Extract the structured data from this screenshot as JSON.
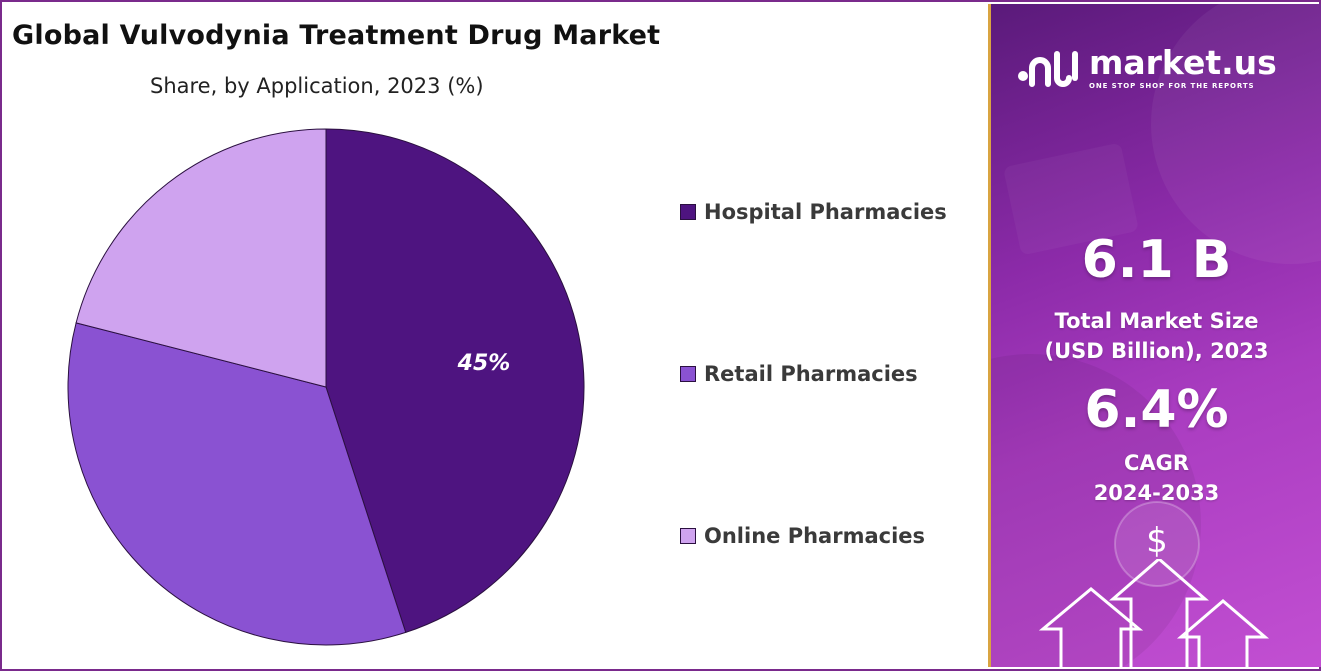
{
  "title": "Global Vulvodynia Treatment Drug Market",
  "subtitle": "Share, by Application, 2023 (%)",
  "chart_data": {
    "type": "pie",
    "title": "Global Vulvodynia Treatment Drug Market",
    "subtitle": "Share, by Application, 2023 (%)",
    "categories": [
      "Hospital Pharmacies",
      "Retail Pharmacies",
      "Online Pharmacies"
    ],
    "values": [
      45,
      34,
      21
    ],
    "data_labels": [
      "45%",
      "",
      ""
    ],
    "colors": [
      "#4e1480",
      "#8a52d2",
      "#cfa3ef"
    ],
    "start_angle_deg": 0,
    "direction": "clockwise",
    "legend_position": "right"
  },
  "legend": {
    "items": [
      {
        "label": "Hospital Pharmacies",
        "color": "#4e1480"
      },
      {
        "label": "Retail Pharmacies",
        "color": "#8a52d2"
      },
      {
        "label": "Online Pharmacies",
        "color": "#cfa3ef"
      }
    ]
  },
  "panel": {
    "brand_name": "market.us",
    "brand_tagline": "ONE STOP SHOP FOR THE REPORTS",
    "market_size_value": "6.1 B",
    "market_size_label_line1": "Total Market Size",
    "market_size_label_line2": "(USD Billion), 2023",
    "cagr_value": "6.4%",
    "cagr_label_line1": "CAGR",
    "cagr_label_line2": "2024-2033",
    "dollar_symbol": "$",
    "icons": [
      "market-us-logo-icon",
      "dollar-icon",
      "up-arrow-icon"
    ]
  },
  "colors": {
    "frame": "#7a2a8c",
    "panel_start": "#5a1a7a",
    "panel_end": "#c24fd2",
    "panel_border": "#d9a441",
    "data_label": "#ffffff"
  }
}
